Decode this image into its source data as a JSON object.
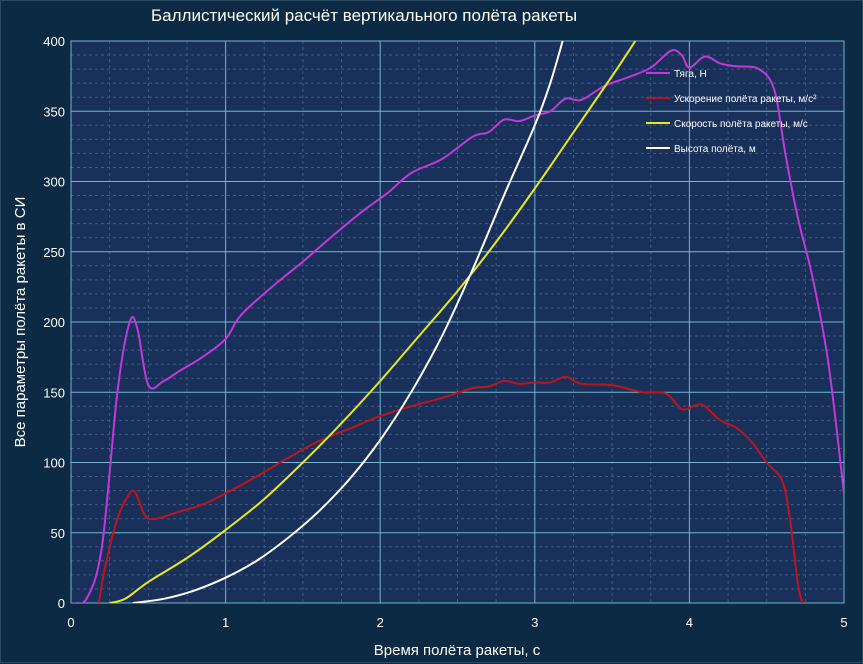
{
  "chart_data": {
    "type": "line",
    "title": "Баллистический расчёт вертикального полёта ракеты",
    "xlabel": "Время полёта ракеты, с",
    "ylabel": "Все параметры полёта ракеты в СИ",
    "xlim": [
      0,
      5
    ],
    "ylim": [
      0,
      400
    ],
    "x_ticks": [
      "0",
      "1",
      "2",
      "3",
      "4",
      "5"
    ],
    "y_ticks": [
      "0",
      "50",
      "100",
      "150",
      "200",
      "250",
      "300",
      "350",
      "400"
    ],
    "grid": true,
    "legend_position": "top-right",
    "series": [
      {
        "name": "Тяга, Н",
        "color": "#c03ad8",
        "points": [
          [
            0,
            0
          ],
          [
            0.1,
            3
          ],
          [
            0.2,
            40
          ],
          [
            0.3,
            150
          ],
          [
            0.38,
            200
          ],
          [
            0.43,
            195
          ],
          [
            0.5,
            155
          ],
          [
            0.6,
            158
          ],
          [
            0.7,
            165
          ],
          [
            0.85,
            175
          ],
          [
            1.0,
            188
          ],
          [
            1.1,
            205
          ],
          [
            1.3,
            225
          ],
          [
            1.5,
            243
          ],
          [
            1.7,
            262
          ],
          [
            1.9,
            280
          ],
          [
            2.05,
            292
          ],
          [
            2.2,
            306
          ],
          [
            2.4,
            316
          ],
          [
            2.6,
            332
          ],
          [
            2.7,
            335
          ],
          [
            2.8,
            344
          ],
          [
            2.9,
            343
          ],
          [
            3.0,
            347
          ],
          [
            3.1,
            350
          ],
          [
            3.2,
            359
          ],
          [
            3.3,
            358
          ],
          [
            3.45,
            368
          ],
          [
            3.6,
            374
          ],
          [
            3.75,
            381
          ],
          [
            3.88,
            393
          ],
          [
            3.95,
            390
          ],
          [
            4.0,
            381
          ],
          [
            4.1,
            389
          ],
          [
            4.2,
            384
          ],
          [
            4.3,
            382
          ],
          [
            4.45,
            380
          ],
          [
            4.55,
            365
          ],
          [
            4.62,
            320
          ],
          [
            4.7,
            275
          ],
          [
            4.8,
            230
          ],
          [
            4.9,
            170
          ],
          [
            5.0,
            78
          ]
        ]
      },
      {
        "name": "Ускорение полёта ракеты, м/с²",
        "color": "#c0141c",
        "points": [
          [
            0.18,
            0
          ],
          [
            0.22,
            25
          ],
          [
            0.3,
            60
          ],
          [
            0.38,
            78
          ],
          [
            0.42,
            78
          ],
          [
            0.48,
            62
          ],
          [
            0.55,
            60
          ],
          [
            0.7,
            65
          ],
          [
            0.85,
            70
          ],
          [
            1.0,
            78
          ],
          [
            1.2,
            90
          ],
          [
            1.4,
            103
          ],
          [
            1.6,
            115
          ],
          [
            1.8,
            124
          ],
          [
            2.0,
            133
          ],
          [
            2.2,
            140
          ],
          [
            2.4,
            146
          ],
          [
            2.6,
            153
          ],
          [
            2.7,
            154
          ],
          [
            2.8,
            158
          ],
          [
            2.9,
            156
          ],
          [
            3.0,
            157
          ],
          [
            3.1,
            157
          ],
          [
            3.2,
            161
          ],
          [
            3.3,
            156
          ],
          [
            3.5,
            155
          ],
          [
            3.7,
            150
          ],
          [
            3.85,
            149
          ],
          [
            3.95,
            138
          ],
          [
            4.05,
            141
          ],
          [
            4.1,
            140
          ],
          [
            4.2,
            130
          ],
          [
            4.3,
            125
          ],
          [
            4.4,
            115
          ],
          [
            4.5,
            100
          ],
          [
            4.6,
            87
          ],
          [
            4.65,
            60
          ],
          [
            4.7,
            15
          ],
          [
            4.73,
            0
          ]
        ]
      },
      {
        "name": "Скорость полёта ракеты, м/с",
        "color": "#e8e81c",
        "points": [
          [
            0.25,
            0
          ],
          [
            0.35,
            3
          ],
          [
            0.5,
            15
          ],
          [
            0.75,
            32
          ],
          [
            1.0,
            52
          ],
          [
            1.25,
            74
          ],
          [
            1.5,
            100
          ],
          [
            1.75,
            128
          ],
          [
            2.0,
            158
          ],
          [
            2.25,
            190
          ],
          [
            2.5,
            222
          ],
          [
            2.75,
            257
          ],
          [
            3.0,
            295
          ],
          [
            3.25,
            335
          ],
          [
            3.5,
            375
          ],
          [
            3.65,
            400
          ]
        ]
      },
      {
        "name": "Высота полёта, м",
        "color": "#ffffff",
        "points": [
          [
            0.4,
            0
          ],
          [
            0.6,
            3
          ],
          [
            0.8,
            9
          ],
          [
            1.0,
            18
          ],
          [
            1.2,
            30
          ],
          [
            1.4,
            46
          ],
          [
            1.6,
            65
          ],
          [
            1.8,
            88
          ],
          [
            2.0,
            116
          ],
          [
            2.2,
            150
          ],
          [
            2.4,
            190
          ],
          [
            2.6,
            238
          ],
          [
            2.8,
            290
          ],
          [
            3.0,
            340
          ],
          [
            3.1,
            370
          ],
          [
            3.18,
            400
          ]
        ]
      }
    ]
  }
}
